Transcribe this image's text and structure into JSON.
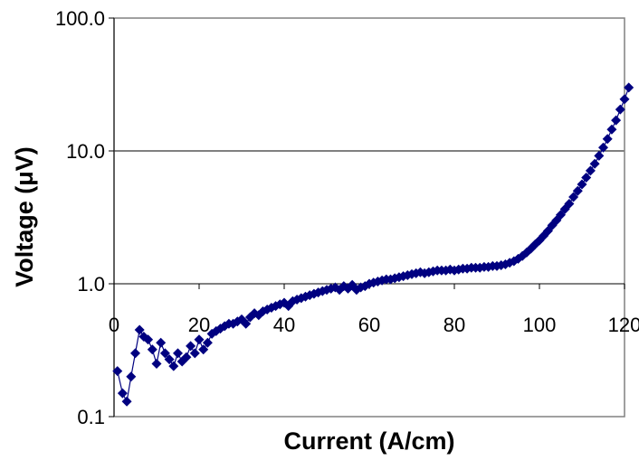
{
  "chart_data": {
    "type": "scatter",
    "title": "",
    "xlabel": "Current (A/cm)",
    "ylabel": "Voltage (μV)",
    "x_scale": "linear",
    "y_scale": "log",
    "xlim": [
      0,
      120
    ],
    "ylim": [
      0.1,
      100
    ],
    "x_ticks": [
      "0",
      "20",
      "40",
      "60",
      "80",
      "100",
      "120"
    ],
    "y_ticks": [
      "0.1",
      "1.0",
      "10.0",
      "100.0"
    ],
    "grid": "horizontal",
    "legend": "none",
    "marker": "diamond",
    "series_color": "#000080",
    "series": [
      {
        "x": [
          0.8,
          2,
          3,
          4,
          5,
          6,
          7,
          8,
          9,
          10,
          11,
          12,
          13,
          14,
          15,
          16,
          17,
          18,
          19,
          20,
          21,
          22,
          23,
          24,
          25,
          26,
          27,
          28,
          29,
          30,
          31,
          32,
          33,
          34,
          35,
          36,
          37,
          38,
          39,
          40,
          41,
          42,
          43,
          44,
          45,
          46,
          47,
          48,
          49,
          50,
          51,
          52,
          53,
          54,
          55,
          56,
          57,
          58,
          59,
          60,
          61,
          62,
          63,
          64,
          65,
          66,
          67,
          68,
          69,
          70,
          71,
          72,
          73,
          74,
          75,
          76,
          77,
          78,
          79,
          80,
          81,
          82,
          83,
          84,
          85,
          86,
          87,
          88,
          89,
          90,
          91,
          92,
          93,
          94,
          95,
          96,
          97,
          98,
          99,
          100,
          101,
          102,
          103,
          104,
          105,
          106,
          107,
          108,
          109,
          110,
          111,
          112,
          113,
          114,
          115,
          116,
          117,
          118,
          119,
          120,
          121
        ],
        "y": [
          0.22,
          0.15,
          0.13,
          0.2,
          0.3,
          0.45,
          0.4,
          0.38,
          0.32,
          0.25,
          0.36,
          0.3,
          0.27,
          0.24,
          0.3,
          0.26,
          0.28,
          0.34,
          0.3,
          0.38,
          0.32,
          0.36,
          0.42,
          0.44,
          0.46,
          0.48,
          0.5,
          0.5,
          0.52,
          0.54,
          0.5,
          0.56,
          0.6,
          0.58,
          0.62,
          0.64,
          0.66,
          0.68,
          0.7,
          0.72,
          0.68,
          0.74,
          0.76,
          0.78,
          0.8,
          0.82,
          0.84,
          0.86,
          0.88,
          0.9,
          0.92,
          0.94,
          0.9,
          0.96,
          0.92,
          0.98,
          0.9,
          0.94,
          0.96,
          1.0,
          1.02,
          1.04,
          1.06,
          1.08,
          1.08,
          1.1,
          1.12,
          1.14,
          1.16,
          1.18,
          1.2,
          1.22,
          1.2,
          1.22,
          1.24,
          1.26,
          1.26,
          1.26,
          1.28,
          1.26,
          1.28,
          1.3,
          1.3,
          1.32,
          1.32,
          1.32,
          1.34,
          1.34,
          1.36,
          1.36,
          1.38,
          1.4,
          1.44,
          1.48,
          1.54,
          1.62,
          1.72,
          1.84,
          1.98,
          2.12,
          2.3,
          2.5,
          2.75,
          3.0,
          3.3,
          3.65,
          4.0,
          4.5,
          5.0,
          5.6,
          6.3,
          7.1,
          8.0,
          9.2,
          10.6,
          12.3,
          14.5,
          17.0,
          20.5,
          24.5,
          30.0
        ]
      }
    ]
  }
}
